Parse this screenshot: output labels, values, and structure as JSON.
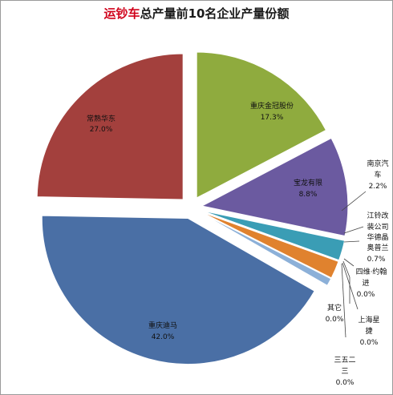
{
  "title": {
    "highlight": "运钞车",
    "rest": "总产量前10名企业产量份额"
  },
  "chart_data": {
    "type": "pie",
    "title": "运钞车总产量前10名企业产量份额",
    "exploded": true,
    "slices": [
      {
        "name": "常熟华东",
        "value": 27.0,
        "label": "27.0%",
        "color": "#a3403d"
      },
      {
        "name": "重庆金冠股份",
        "value": 17.3,
        "label": "17.3%",
        "color": "#8fab3e"
      },
      {
        "name": "南京汽车",
        "value": 2.2,
        "label": "2.2%",
        "color": "#6b5aa0"
      },
      {
        "name": "宝龙有限",
        "value": 8.8,
        "label": "8.8%",
        "color": "#6b5aa0"
      },
      {
        "name": "江铃改装公司",
        "value": 0.0,
        "label": "",
        "color": "#3a9db5"
      },
      {
        "name": "华德晶",
        "value": 0.0,
        "label": "",
        "color": "#3a9db5"
      },
      {
        "name": "奥普兰",
        "value": 0.7,
        "label": "0.7%",
        "color": "#e0822e"
      },
      {
        "name": "四维·约翰进",
        "value": 0.0,
        "label": "0.0%",
        "color": "#8cb0d8"
      },
      {
        "name": "上海星捷",
        "value": 0.0,
        "label": "0.0%",
        "color": "#c9a6a6"
      },
      {
        "name": "三五二三",
        "value": 0.0,
        "label": "0.0%",
        "color": "#b7c98a"
      },
      {
        "name": "其它",
        "value": 0.0,
        "label": "0.0%",
        "color": "#a99ec7"
      },
      {
        "name": "重庆迪马",
        "value": 42.0,
        "label": "42.0%",
        "color": "#4a6fa5"
      }
    ]
  }
}
